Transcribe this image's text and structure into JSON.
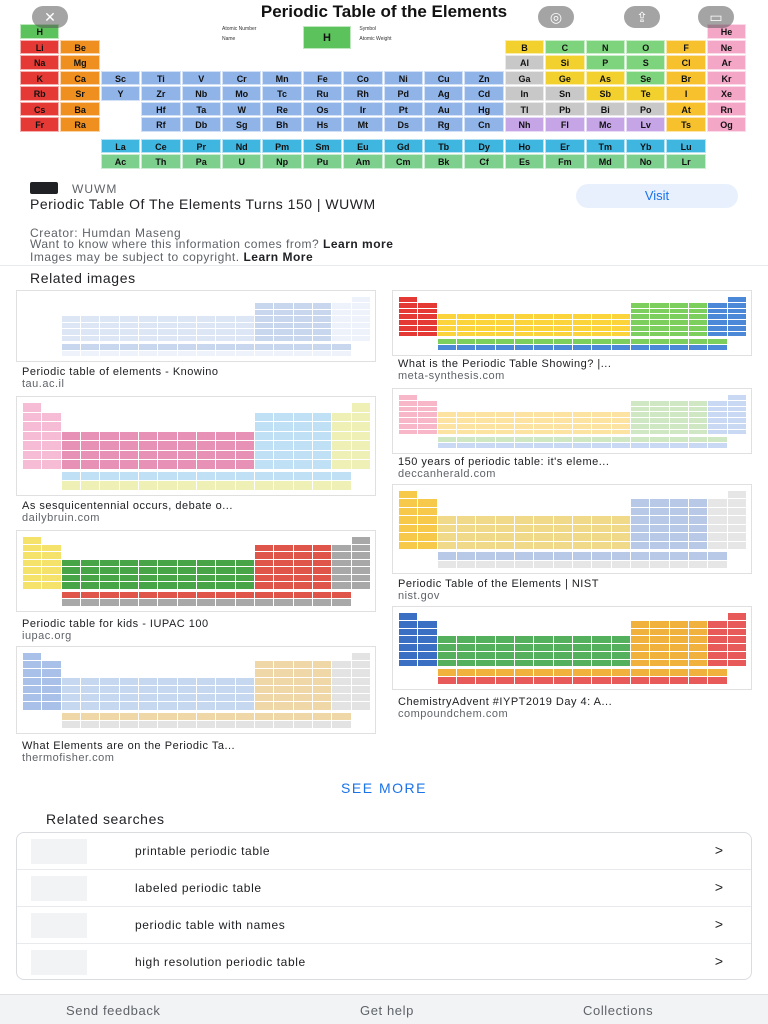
{
  "hero": {
    "title": "Periodic Table of the Elements",
    "close_icon": "close-icon",
    "lens_icon": "lens-icon",
    "share_icon": "share-icon",
    "save_icon": "save-icon",
    "legend_labels": [
      "Atomic Number",
      "Symbol",
      "Name",
      "Atomic Weight"
    ],
    "periods": [
      [
        "H",
        "",
        "",
        "",
        "",
        "",
        "",
        "",
        "",
        "",
        "",
        "",
        "",
        "",
        "",
        "",
        "",
        "He"
      ],
      [
        "Li",
        "Be",
        "",
        "",
        "",
        "",
        "",
        "",
        "",
        "",
        "",
        "",
        "B",
        "C",
        "N",
        "O",
        "F",
        "Ne"
      ],
      [
        "Na",
        "Mg",
        "",
        "",
        "",
        "",
        "",
        "",
        "",
        "",
        "",
        "",
        "Al",
        "Si",
        "P",
        "S",
        "Cl",
        "Ar"
      ],
      [
        "K",
        "Ca",
        "Sc",
        "Ti",
        "V",
        "Cr",
        "Mn",
        "Fe",
        "Co",
        "Ni",
        "Cu",
        "Zn",
        "Ga",
        "Ge",
        "As",
        "Se",
        "Br",
        "Kr"
      ],
      [
        "Rb",
        "Sr",
        "Y",
        "Zr",
        "Nb",
        "Mo",
        "Tc",
        "Ru",
        "Rh",
        "Pd",
        "Ag",
        "Cd",
        "In",
        "Sn",
        "Sb",
        "Te",
        "I",
        "Xe"
      ],
      [
        "Cs",
        "Ba",
        "",
        "Hf",
        "Ta",
        "W",
        "Re",
        "Os",
        "Ir",
        "Pt",
        "Au",
        "Hg",
        "Tl",
        "Pb",
        "Bi",
        "Po",
        "At",
        "Rn"
      ],
      [
        "Fr",
        "Ra",
        "",
        "Rf",
        "Db",
        "Sg",
        "Bh",
        "Hs",
        "Mt",
        "Ds",
        "Rg",
        "Cn",
        "Nh",
        "Fl",
        "Mc",
        "Lv",
        "Ts",
        "Og"
      ]
    ],
    "lanthanides": [
      "La",
      "Ce",
      "Pr",
      "Nd",
      "Pm",
      "Sm",
      "Eu",
      "Gd",
      "Tb",
      "Dy",
      "Ho",
      "Er",
      "Tm",
      "Yb",
      "Lu"
    ],
    "actinides": [
      "Ac",
      "Th",
      "Pa",
      "U",
      "Np",
      "Pu",
      "Am",
      "Cm",
      "Bk",
      "Cf",
      "Es",
      "Fm",
      "Md",
      "No",
      "Lr"
    ],
    "colors": {
      "alkali": "#e53935",
      "alkaline": "#ef8f1f",
      "transition": "#90b4e8",
      "post": "#c8c8c8",
      "metalloid": "#f2d12e",
      "nonmetal": "#7dd47d",
      "halogen": "#f7c12e",
      "noble": "#f4a6c7",
      "lanthanide": "#3fb6e0",
      "actinide": "#7ccf8d",
      "hydrogen": "#5cc25c",
      "unknown": "#c5a5e6"
    }
  },
  "source": {
    "site": "WUWM",
    "title": "Periodic Table Of The Elements Turns 150 | WUWM",
    "visit_label": "Visit",
    "creator": "Creator: Humdan Maseng",
    "copyright_q": "Want to know where this information comes from?",
    "learn_more_1": "Learn more",
    "copyright_2": "Images may be subject to copyright.",
    "learn_more_2": "Learn More"
  },
  "related_images": {
    "heading": "Related images",
    "items": [
      {
        "caption": "Periodic table of elements - Knowino",
        "domain": "tau.ac.il"
      },
      {
        "caption": "What is the Periodic Table Showing? |...",
        "domain": "meta-synthesis.com"
      },
      {
        "caption": "As sesquicentennial occurs, debate o...",
        "domain": "dailybruin.com"
      },
      {
        "caption": "150 years of periodic table: it's eleme...",
        "domain": "deccanherald.com"
      },
      {
        "caption": "Periodic table for kids - IUPAC 100",
        "domain": "iupac.org"
      },
      {
        "caption": "Periodic Table of the Elements | NIST",
        "domain": "nist.gov"
      },
      {
        "caption": "What Elements are on the Periodic Ta...",
        "domain": "thermofisher.com"
      },
      {
        "caption": "ChemistryAdvent #IYPT2019 Day 4: A...",
        "domain": "compoundchem.com"
      }
    ],
    "see_more": "SEE MORE"
  },
  "related_searches": {
    "heading": "Related searches",
    "items": [
      {
        "label": "printable periodic table",
        "chevron": ">"
      },
      {
        "label": "labeled periodic table",
        "chevron": ">"
      },
      {
        "label": "periodic table with names",
        "chevron": ">"
      },
      {
        "label": "high resolution periodic table",
        "chevron": ">"
      }
    ]
  },
  "footer": {
    "send_feedback": "Send feedback",
    "get_help": "Get help",
    "collections": "Collections"
  }
}
